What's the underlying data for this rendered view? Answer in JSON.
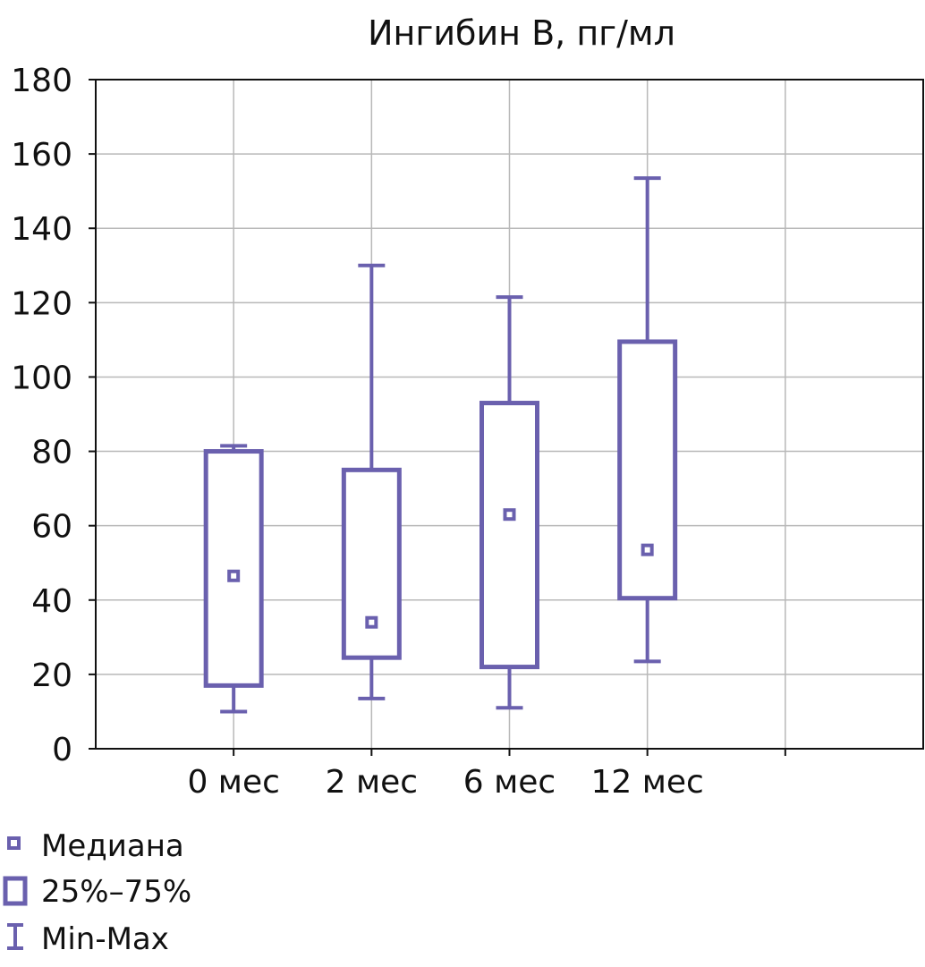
{
  "chart_data": {
    "type": "boxplot",
    "title": "Ингибин B, пг/мл",
    "xlabel": "",
    "ylabel": "",
    "ylim": [
      0,
      180
    ],
    "yticks": [
      "0",
      "20",
      "40",
      "60",
      "80",
      "100",
      "120",
      "140",
      "160",
      "180"
    ],
    "grid": true,
    "categories": [
      "0 мес",
      "2 мес",
      "6 мес",
      "12 мес",
      ""
    ],
    "series": [
      {
        "name": "0 мес",
        "min": 10,
        "q1": 17,
        "median": 46.5,
        "q3": 80,
        "max": 81.5
      },
      {
        "name": "2 мес",
        "min": 13.5,
        "q1": 24.5,
        "median": 34,
        "q3": 75,
        "max": 130
      },
      {
        "name": "6 мес",
        "min": 11,
        "q1": 22,
        "median": 63,
        "q3": 93,
        "max": 121.5
      },
      {
        "name": "12 мес",
        "min": 23.5,
        "q1": 40.5,
        "median": 53.5,
        "q3": 109.5,
        "max": 153.5
      }
    ],
    "legend": {
      "placement": "bottom-left",
      "items": [
        "Медиана",
        "25%–75%",
        "Min-Max"
      ]
    },
    "color": "#6a60ae"
  }
}
